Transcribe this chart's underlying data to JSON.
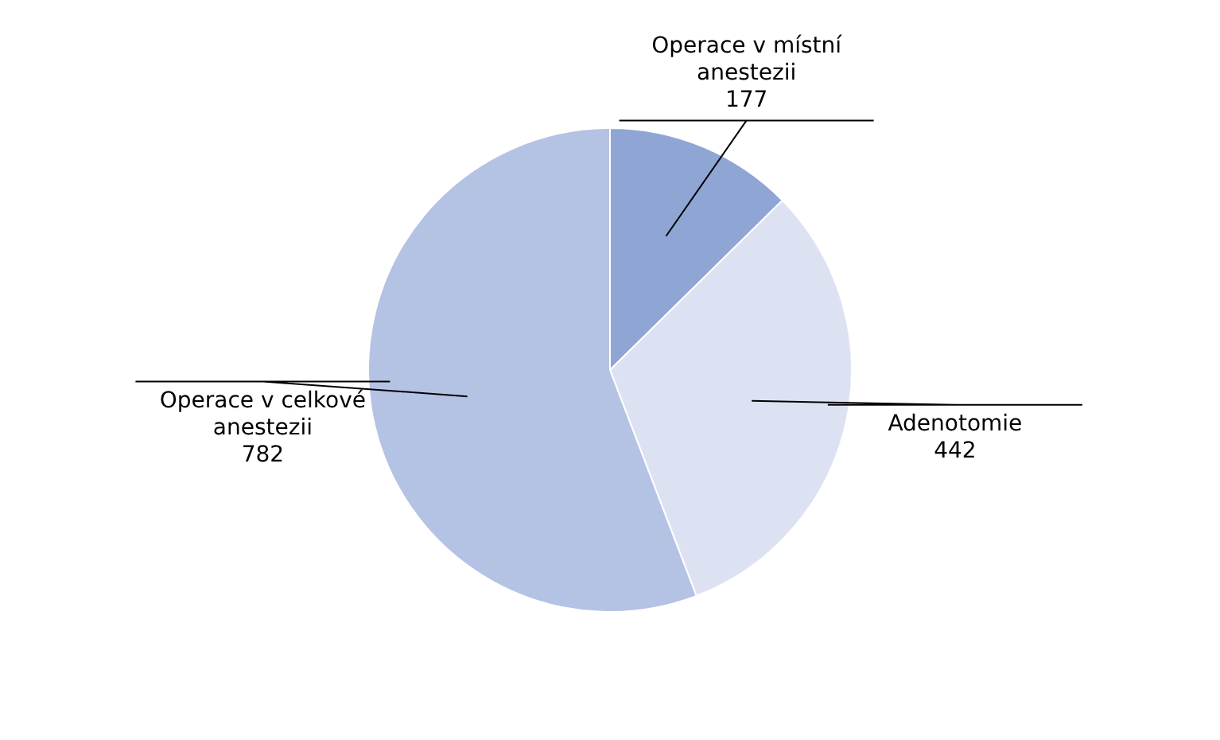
{
  "chart_data": {
    "type": "pie",
    "categories": [
      "Operace v místní anestezii",
      "Adenotomie",
      "Operace v celkové anestezii"
    ],
    "values": [
      177,
      442,
      782
    ],
    "colors": [
      "#8fa6d4",
      "#dde2f2",
      "#b4c2e4"
    ],
    "legend": false,
    "data_labels": true
  }
}
